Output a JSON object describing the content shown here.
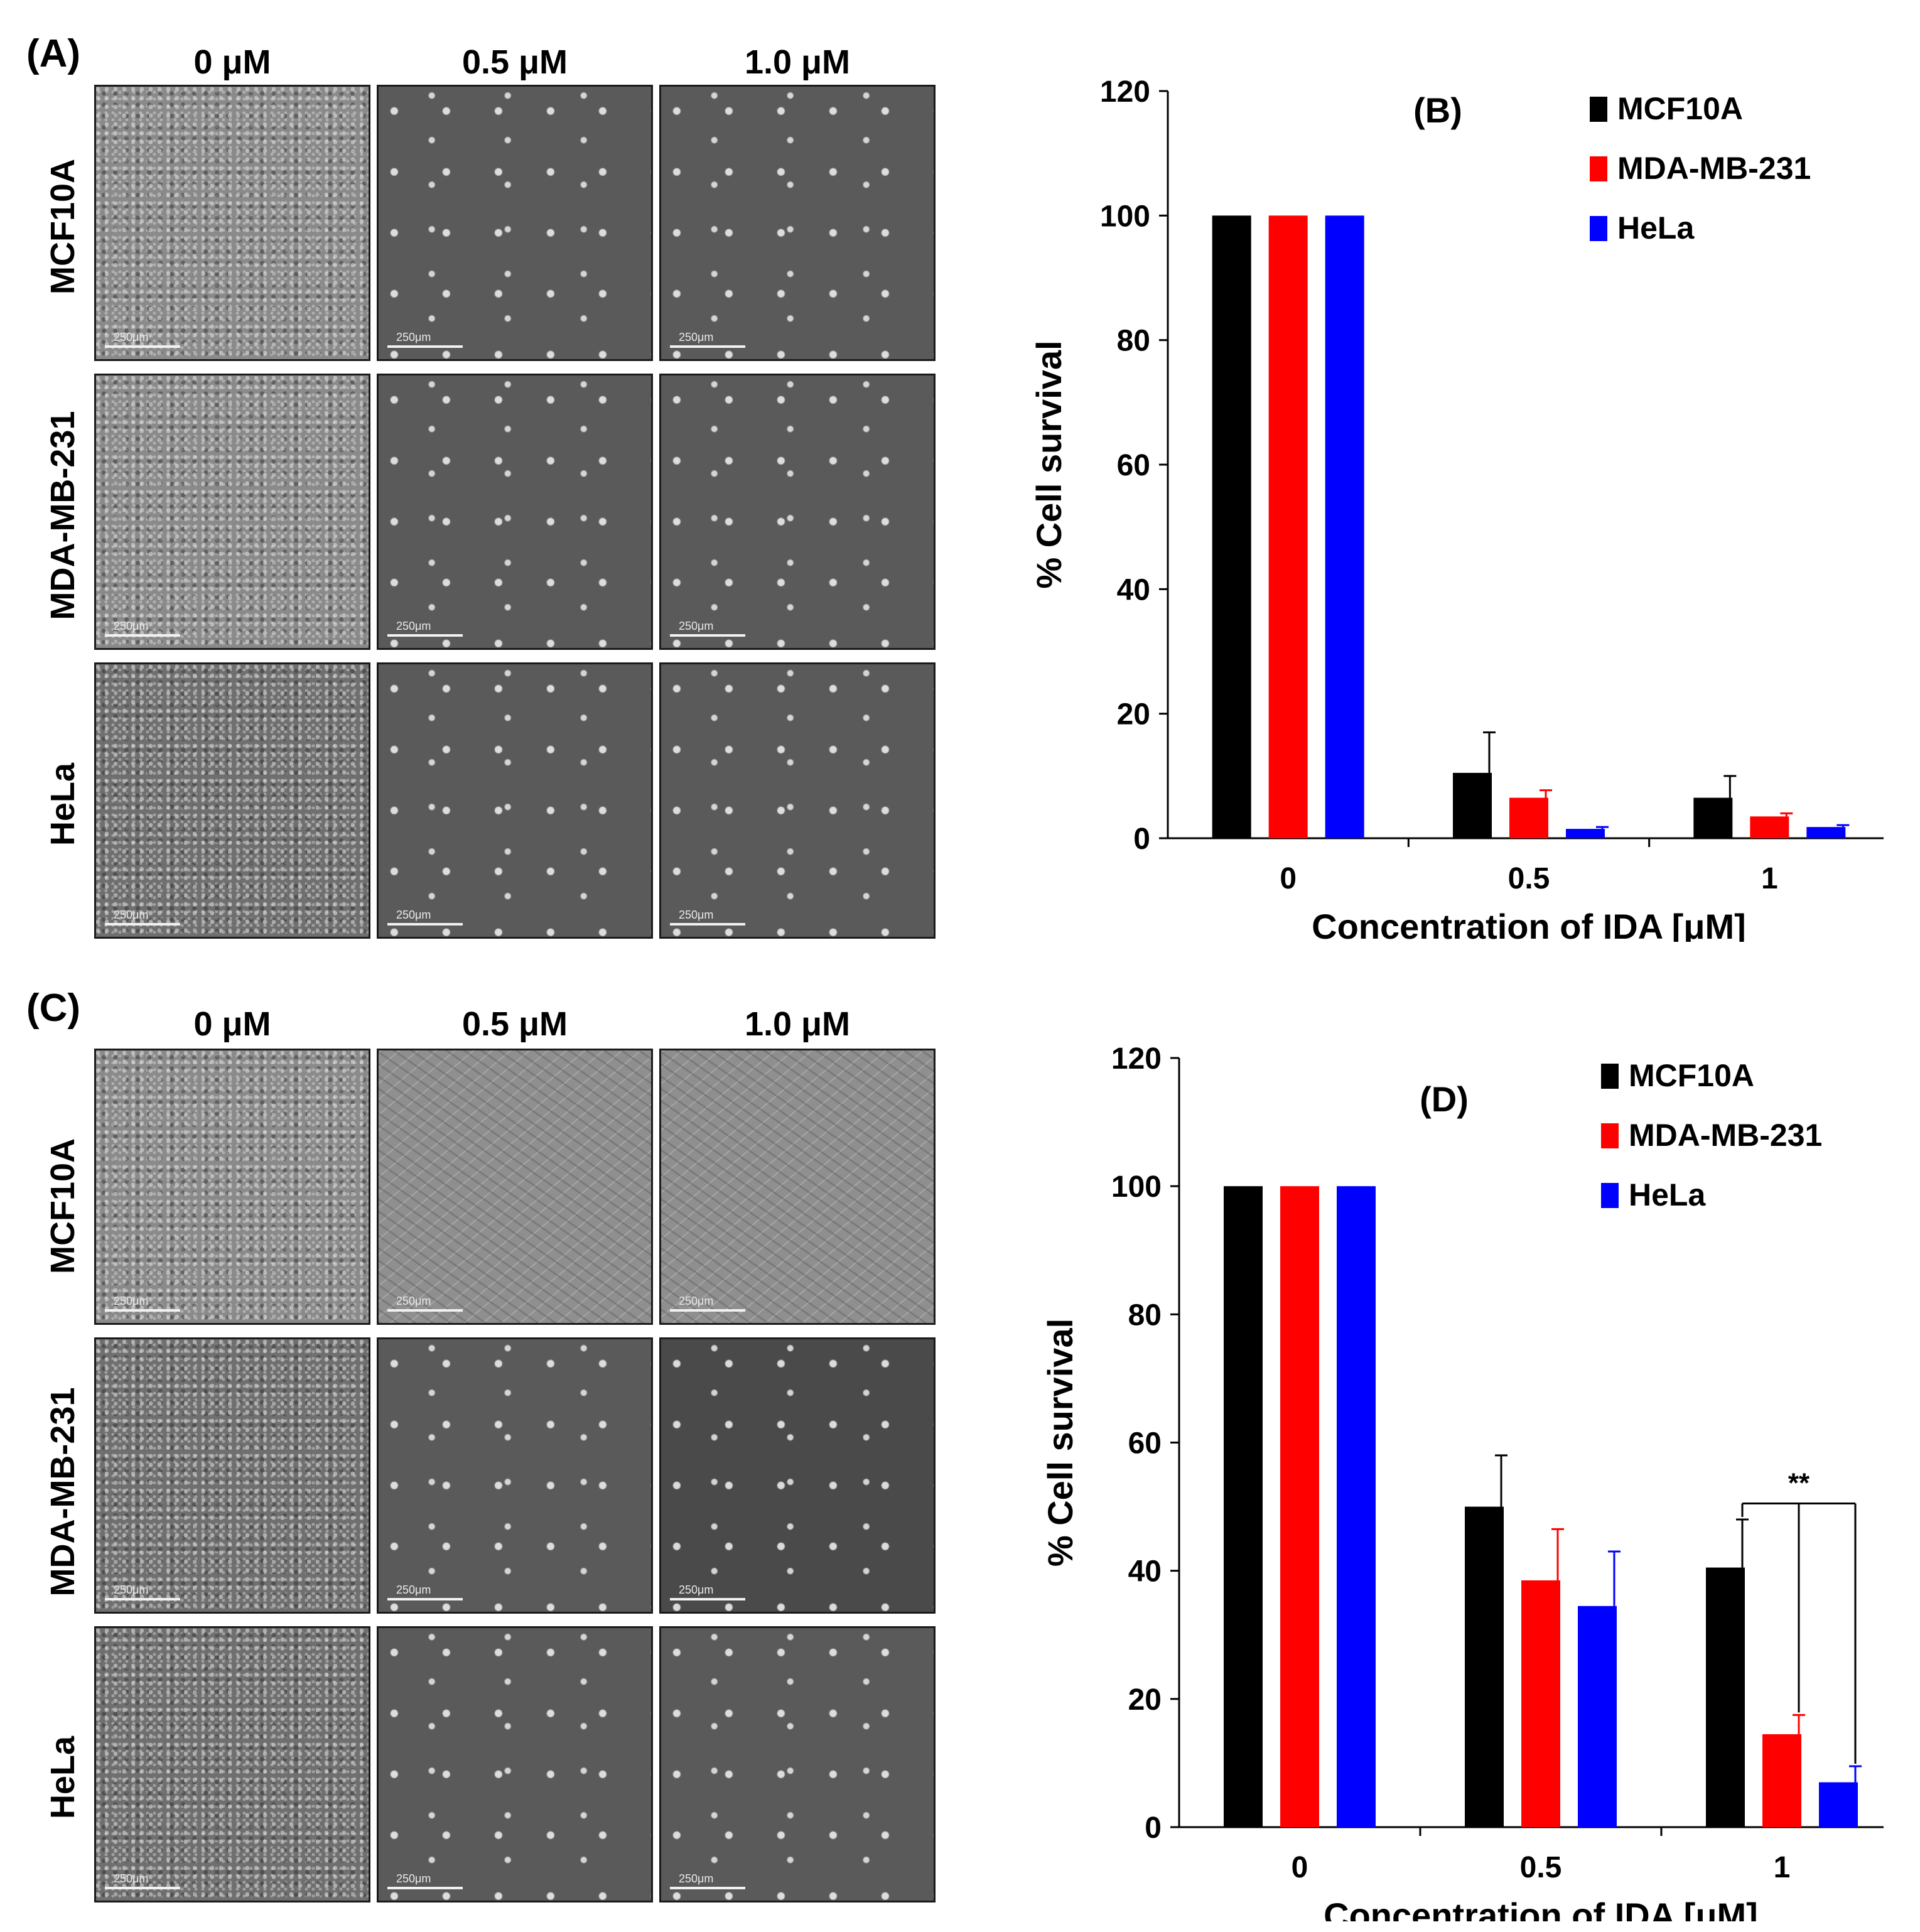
{
  "panels": {
    "a": {
      "letter": "(A)",
      "columns": [
        "0 μM",
        "0.5 μM",
        "1.0 μM"
      ],
      "rows": [
        "MCF10A",
        "MDA-MB-231",
        "HeLa"
      ],
      "scale_label": "250μm"
    },
    "c": {
      "letter": "(C)",
      "columns": [
        "0 μM",
        "0.5 μM",
        "1.0 μM"
      ],
      "rows": [
        "MCF10A",
        "MDA-MB-231",
        "HeLa"
      ],
      "scale_label": "250μm"
    }
  },
  "series_colors": {
    "MCF10A": "#000000",
    "MDA-MB-231": "#ff0000",
    "HeLa": "#0000ff"
  },
  "chart_data": [
    {
      "type": "bar",
      "title": "(B)",
      "categories": [
        "0",
        "0.5",
        "1"
      ],
      "xlabel": "Concentration of IDA [μM]",
      "ylabel": "% Cell survival",
      "ylim": [
        0,
        120
      ],
      "yticks": [
        0,
        20,
        40,
        60,
        80,
        100,
        120
      ],
      "legend": "top-right",
      "series": [
        {
          "name": "MCF10A",
          "values": [
            100,
            10.5,
            6.5
          ],
          "errors": [
            0,
            6.5,
            3.5
          ]
        },
        {
          "name": "MDA-MB-231",
          "values": [
            100,
            6.5,
            3.5
          ],
          "errors": [
            0,
            1.2,
            0.5
          ]
        },
        {
          "name": "HeLa",
          "values": [
            100,
            1.5,
            1.8
          ],
          "errors": [
            0,
            0.3,
            0.3
          ]
        }
      ]
    },
    {
      "type": "bar",
      "title": "(D)",
      "categories": [
        "0",
        "0.5",
        "1"
      ],
      "xlabel": "Concentration of IDA [μM]",
      "ylabel": "% Cell survival",
      "ylim": [
        0,
        120
      ],
      "yticks": [
        0,
        20,
        40,
        60,
        80,
        100,
        120
      ],
      "legend": "top-right",
      "significance": "**",
      "series": [
        {
          "name": "MCF10A",
          "values": [
            100,
            50,
            40.5
          ],
          "errors": [
            0,
            8,
            7.5
          ]
        },
        {
          "name": "MDA-MB-231",
          "values": [
            100,
            38.5,
            14.5
          ],
          "errors": [
            0,
            8,
            3
          ]
        },
        {
          "name": "HeLa",
          "values": [
            100,
            34.5,
            7
          ],
          "errors": [
            0,
            8.5,
            2.5
          ]
        }
      ]
    }
  ]
}
